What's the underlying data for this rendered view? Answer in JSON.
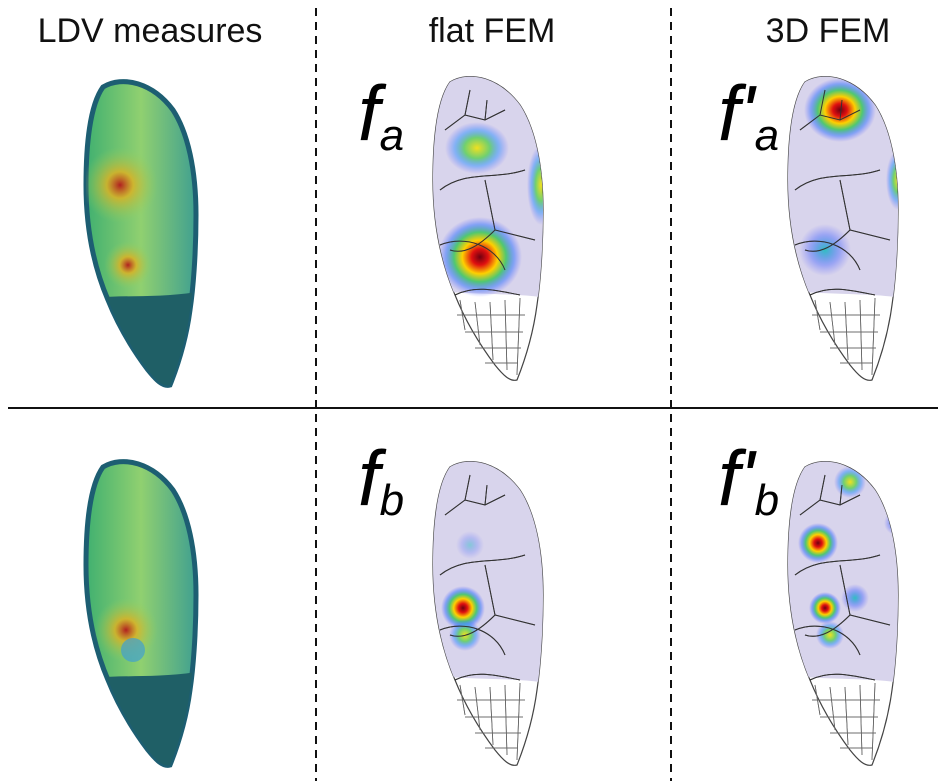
{
  "headers": [
    "LDV measures",
    "flat FEM",
    "3D FEM"
  ],
  "labels": [
    {
      "base": "f",
      "sub": "a"
    },
    {
      "base": "f'",
      "sub": "a"
    },
    {
      "base": "f",
      "sub": "b"
    },
    {
      "base": "f'",
      "sub": "b"
    }
  ]
}
